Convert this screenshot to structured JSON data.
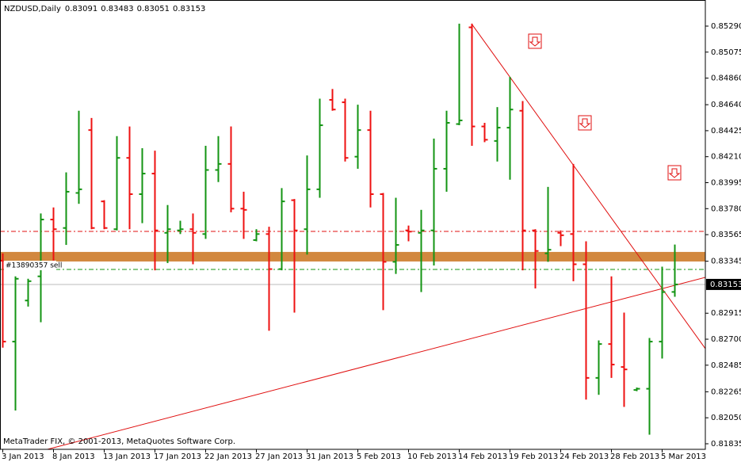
{
  "chart_data": {
    "type": "ohlc",
    "title": "NZDUSD,Daily",
    "watermark": "MetaTrader FIX, © 2001-2013, MetaQuotes Software Corp.",
    "order_label": "#13890357 sell",
    "categories": [
      "3 Jan 2013",
      null,
      null,
      null,
      "8 Jan 2013",
      null,
      null,
      null,
      "13 Jan 2013",
      null,
      null,
      null,
      "17 Jan 2013",
      null,
      null,
      null,
      "22 Jan 2013",
      null,
      null,
      null,
      "27 Jan 2013",
      null,
      null,
      null,
      "31 Jan 2013",
      null,
      null,
      null,
      "5 Feb 2013",
      null,
      null,
      null,
      "10 Feb 2013",
      null,
      null,
      null,
      "14 Feb 2013",
      null,
      null,
      null,
      "19 Feb 2013",
      null,
      null,
      null,
      "24 Feb 2013",
      null,
      null,
      null,
      "28 Feb 2013",
      null,
      null,
      null,
      "5 Mar 2013",
      null
    ],
    "open": [
      0.8335,
      0.8268,
      0.8302,
      0.8322,
      0.8369,
      0.8362,
      0.8391,
      0.8443,
      0.8384,
      0.8361,
      0.842,
      0.839,
      0.8407,
      0.8358,
      0.836,
      0.8361,
      0.8357,
      0.841,
      0.8415,
      0.8378,
      0.8352,
      0.8357,
      0.8328,
      0.8385,
      0.8361,
      0.8394,
      0.8468,
      0.8466,
      0.8421,
      0.8443,
      0.839,
      0.8334,
      0.836,
      0.8358,
      0.836,
      0.8411,
      0.8448,
      0.8528,
      0.8446,
      0.8434,
      0.8445,
      0.8459,
      0.836,
      0.8341,
      0.8358,
      0.8357,
      0.8332,
      0.8238,
      0.8266,
      0.8247,
      0.8228,
      0.8229,
      0.8268,
      0.83091
    ],
    "high": [
      0.8341,
      0.8322,
      0.832,
      0.8374,
      0.8379,
      0.8408,
      0.8459,
      0.8453,
      0.8385,
      0.8438,
      0.8446,
      0.8428,
      0.8426,
      0.8381,
      0.8368,
      0.8374,
      0.843,
      0.8438,
      0.8446,
      0.8392,
      0.8361,
      0.8363,
      0.8395,
      0.8386,
      0.8422,
      0.8469,
      0.8477,
      0.8469,
      0.8464,
      0.8459,
      0.8391,
      0.8387,
      0.8364,
      0.8377,
      0.8436,
      0.8459,
      0.8531,
      0.8531,
      0.8449,
      0.8462,
      0.8487,
      0.8467,
      0.8361,
      0.8396,
      0.836,
      0.8415,
      0.8351,
      0.8269,
      0.8322,
      0.8292,
      0.823,
      0.8271,
      0.833,
      0.83483
    ],
    "low": [
      0.8263,
      0.8211,
      0.8297,
      0.8284,
      0.8335,
      0.8348,
      0.8382,
      0.8361,
      0.8361,
      0.836,
      0.8361,
      0.8366,
      0.8327,
      0.8333,
      0.8357,
      0.8332,
      0.8353,
      0.84,
      0.8375,
      0.8353,
      0.8351,
      0.8277,
      0.8327,
      0.8292,
      0.834,
      0.8387,
      0.8459,
      0.8417,
      0.8411,
      0.8379,
      0.8294,
      0.8324,
      0.8351,
      0.8309,
      0.8331,
      0.8392,
      0.8447,
      0.843,
      0.8433,
      0.8417,
      0.8402,
      0.8327,
      0.8312,
      0.8334,
      0.8347,
      0.8318,
      0.822,
      0.8224,
      0.8238,
      0.8214,
      0.8227,
      0.8191,
      0.8254,
      0.83051
    ],
    "close": [
      0.8268,
      0.832,
      0.8318,
      0.8369,
      0.8361,
      0.8392,
      0.8394,
      0.8362,
      0.8362,
      0.842,
      0.839,
      0.8407,
      0.836,
      0.8361,
      0.8361,
      0.8358,
      0.841,
      0.8415,
      0.8378,
      0.8377,
      0.8357,
      0.8328,
      0.8384,
      0.836,
      0.8394,
      0.8447,
      0.846,
      0.842,
      0.8443,
      0.839,
      0.8334,
      0.8348,
      0.8359,
      0.836,
      0.8411,
      0.8449,
      0.8451,
      0.8446,
      0.8435,
      0.8445,
      0.846,
      0.836,
      0.8343,
      0.8344,
      0.8356,
      0.8332,
      0.8238,
      0.8266,
      0.8249,
      0.8245,
      0.8229,
      0.8268,
      0.8309,
      0.83153
    ],
    "up_color": "#139413",
    "down_color": "#ee1111",
    "ylim": [
      0.81789,
      0.85493
    ],
    "yticks": [
      {
        "value": 0.8529,
        "label": "0.85290"
      },
      {
        "value": 0.85075,
        "label": "0.85075"
      },
      {
        "value": 0.8486,
        "label": "0.84860"
      },
      {
        "value": 0.8464,
        "label": "0.84640"
      },
      {
        "value": 0.84425,
        "label": "0.84425"
      },
      {
        "value": 0.8421,
        "label": "0.84210"
      },
      {
        "value": 0.83995,
        "label": "0.83995"
      },
      {
        "value": 0.8378,
        "label": "0.83780"
      },
      {
        "value": 0.83565,
        "label": "0.83565"
      },
      {
        "value": 0.83345,
        "label": "0.83345"
      },
      {
        "value": 0.82915,
        "label": "0.82915"
      },
      {
        "value": 0.827,
        "label": "0.82700"
      },
      {
        "value": 0.82485,
        "label": "0.82485"
      },
      {
        "value": 0.82265,
        "label": "0.82265"
      },
      {
        "value": 0.8205,
        "label": "0.82050"
      },
      {
        "value": 0.81835,
        "label": "0.81835"
      }
    ],
    "zone": {
      "range": [
        0.83343,
        0.83422
      ],
      "color": "#d2883f"
    },
    "levels": [
      {
        "value": 0.83592,
        "color": "#e01010"
      },
      {
        "value": 0.83277,
        "color": "#139413"
      }
    ],
    "trendlines": [
      {
        "from": [
          37,
          0.8531
        ],
        "to": [
          55.44,
          0.82622
        ],
        "color": "#e01010"
      },
      {
        "from": [
          3.56,
          0.81789
        ],
        "to": [
          55.44,
          0.83212
        ],
        "color": "#e01010"
      }
    ]
  }
}
